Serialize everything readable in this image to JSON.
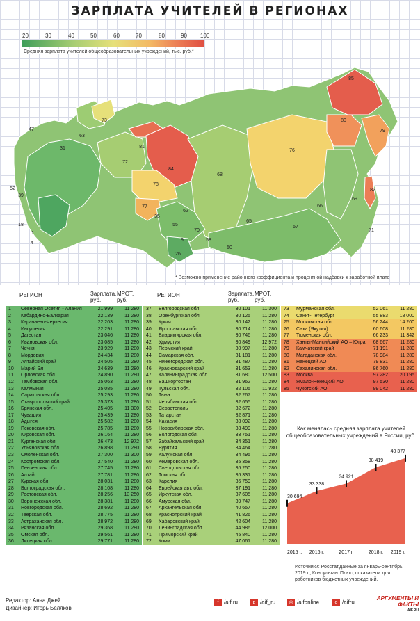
{
  "title": "ЗАРПЛАТА УЧИТЕЛЕЙ В РЕГИОНАХ",
  "scale": {
    "ticks": [
      "20",
      "30",
      "40",
      "50",
      "60",
      "70",
      "80",
      "90",
      "100"
    ],
    "caption": "Средняя зарплата учителей общеобразовательных учреждений, тыс. руб.*",
    "colors": [
      "#3f9e5a",
      "#6db86a",
      "#a6cd72",
      "#d9de72",
      "#f3d36d",
      "#f2a15c",
      "#e76f51",
      "#e04f42"
    ]
  },
  "map": {
    "labels": [
      "47",
      "63",
      "73",
      "81",
      "31",
      "72",
      "84",
      "76",
      "85",
      "80",
      "79",
      "78",
      "68",
      "82",
      "77",
      "62",
      "69",
      "66",
      "65",
      "57",
      "55",
      "70",
      "58",
      "71",
      "35",
      "9",
      "26",
      "50",
      "18",
      "1",
      "4",
      "52",
      "39"
    ]
  },
  "footnote": "* Возможно применение районного коэффициента и процентной надбавки к заработной плате",
  "table_headers": {
    "region": "РЕГИОН",
    "salary": "Зарплата, руб.",
    "mrot": "МРОТ, руб."
  },
  "regions_col1": [
    [
      "1",
      "Северная Осетия - Алания",
      "21 999",
      "11 280"
    ],
    [
      "2",
      "Кабардино-Балкария",
      "22 139",
      "11 280"
    ],
    [
      "3",
      "Карачаево-Черкесия",
      "22 203",
      "11 280"
    ],
    [
      "4",
      "Ингушетия",
      "22 291",
      "11 280"
    ],
    [
      "5",
      "Дагестан",
      "23 046",
      "11 280"
    ],
    [
      "6",
      "Ивановская обл.",
      "23 085",
      "11 280"
    ],
    [
      "7",
      "Чечня",
      "23 929",
      "11 280"
    ],
    [
      "8",
      "Мордовия",
      "24 434",
      "11 280"
    ],
    [
      "9",
      "Алтайский край",
      "24 505",
      "11 280"
    ],
    [
      "10",
      "Марий Эл",
      "24 639",
      "11 280"
    ],
    [
      "11",
      "Орловская обл.",
      "24 890",
      "11 280"
    ],
    [
      "12",
      "Тамбовская обл.",
      "25 063",
      "11 280"
    ],
    [
      "13",
      "Калмыкия",
      "25 085",
      "11 280"
    ],
    [
      "14",
      "Саратовская обл.",
      "25 293",
      "11 280"
    ],
    [
      "15",
      "Ставропольский край",
      "25 373",
      "11 280"
    ],
    [
      "16",
      "Брянская обл.",
      "25 405",
      "11 300"
    ],
    [
      "17",
      "Чувашия",
      "25 439",
      "11 280"
    ],
    [
      "18",
      "Адыгея",
      "25 582",
      "11 280"
    ],
    [
      "19",
      "Псковская обл.",
      "25 785",
      "11 280"
    ],
    [
      "20",
      "Кировская обл.",
      "26 164",
      "11 280"
    ],
    [
      "21",
      "Курганская обл.",
      "26 473",
      "12 972"
    ],
    [
      "22",
      "Ульяновская обл.",
      "26 898",
      "11 280"
    ],
    [
      "23",
      "Смоленская обл.",
      "27 300",
      "11 300"
    ],
    [
      "24",
      "Костромская обл.",
      "27 540",
      "11 280"
    ],
    [
      "25",
      "Пензенская обл.",
      "27 745",
      "11 280"
    ],
    [
      "26",
      "Алтай",
      "27 781",
      "11 280"
    ],
    [
      "27",
      "Курская обл.",
      "28 031",
      "11 280"
    ],
    [
      "28",
      "Волгоградская обл.",
      "28 108",
      "11 280"
    ],
    [
      "29",
      "Ростовская обл.",
      "28 256",
      "13 250"
    ],
    [
      "30",
      "Воронежская обл.",
      "28 381",
      "11 280"
    ],
    [
      "31",
      "Новгородская обл.",
      "28 692",
      "11 280"
    ],
    [
      "32",
      "Тверская обл.",
      "28 775",
      "11 280"
    ],
    [
      "33",
      "Астраханская обл.",
      "28 972",
      "11 280"
    ],
    [
      "34",
      "Рязанская обл.",
      "29 368",
      "11 280"
    ],
    [
      "35",
      "Омская обл.",
      "29 561",
      "11 280"
    ],
    [
      "36",
      "Липецкая обл.",
      "29 771",
      "11 280"
    ]
  ],
  "regions_col2": [
    [
      "37",
      "Белгородская обл.",
      "30 101",
      "11 300"
    ],
    [
      "38",
      "Оренбургская обл.",
      "30 125",
      "11 280"
    ],
    [
      "39",
      "Крым",
      "30 142",
      "11 280"
    ],
    [
      "40",
      "Ярославская обл.",
      "30 714",
      "11 280"
    ],
    [
      "41",
      "Владимирская обл.",
      "30 746",
      "11 280"
    ],
    [
      "42",
      "Удмуртия",
      "30 849",
      "12 972"
    ],
    [
      "43",
      "Пермский край",
      "30 997",
      "11 280"
    ],
    [
      "44",
      "Самарская обл.",
      "31 181",
      "11 280"
    ],
    [
      "45",
      "Нижегородская обл.",
      "31 487",
      "11 280"
    ],
    [
      "46",
      "Краснодарский край",
      "31 653",
      "11 280"
    ],
    [
      "47",
      "Калининградская обл.",
      "31 680",
      "12 500"
    ],
    [
      "48",
      "Башкортостан",
      "31 962",
      "11 280"
    ],
    [
      "49",
      "Тульская обл.",
      "32 105",
      "11 932"
    ],
    [
      "50",
      "Тыва",
      "32 267",
      "11 280"
    ],
    [
      "51",
      "Челябинская обл.",
      "32 655",
      "11 280"
    ],
    [
      "52",
      "Севастополь",
      "32 672",
      "11 280"
    ],
    [
      "53",
      "Татарстан",
      "32 871",
      "11 280"
    ],
    [
      "54",
      "Хакасия",
      "33 092",
      "11 280"
    ],
    [
      "55",
      "Новосибирская обл.",
      "33 499",
      "11 280"
    ],
    [
      "56",
      "Вологодская обл.",
      "33 751",
      "11 280"
    ],
    [
      "57",
      "Забайкальский край",
      "34 351",
      "11 280"
    ],
    [
      "58",
      "Бурятия",
      "34 464",
      "11 280"
    ],
    [
      "59",
      "Калужская обл.",
      "34 495",
      "11 280"
    ],
    [
      "60",
      "Кемеровская обл.",
      "35 358",
      "11 280"
    ],
    [
      "61",
      "Свердловская обл.",
      "36 250",
      "11 280"
    ],
    [
      "62",
      "Томская обл.",
      "36 331",
      "11 280"
    ],
    [
      "63",
      "Карелия",
      "36 759",
      "11 280"
    ],
    [
      "64",
      "Еврейская авт. обл.",
      "37 191",
      "11 280"
    ],
    [
      "65",
      "Иркутская обл.",
      "37 605",
      "11 280"
    ],
    [
      "66",
      "Амурская обл.",
      "39 747",
      "11 280"
    ],
    [
      "67",
      "Архангельская обл.",
      "40 657",
      "11 280"
    ],
    [
      "68",
      "Красноярский край",
      "41 826",
      "11 280"
    ],
    [
      "69",
      "Хабаровский край",
      "42 604",
      "11 280"
    ],
    [
      "70",
      "Ленинградская обл.",
      "44 986",
      "12 000"
    ],
    [
      "71",
      "Приморский край",
      "45 840",
      "11 280"
    ],
    [
      "72",
      "Коми",
      "47 061",
      "11 280"
    ]
  ],
  "regions_col3": [
    [
      "73",
      "Мурманская обл.",
      "52 061",
      "11 280"
    ],
    [
      "74",
      "Санкт-Петербург",
      "55 883",
      "18 000"
    ],
    [
      "75",
      "Московская обл.",
      "56 244",
      "14 200"
    ],
    [
      "76",
      "Саха (Якутия)",
      "60 608",
      "11 280"
    ],
    [
      "77",
      "Тюменская обл.",
      "66 233",
      "11 342"
    ],
    [
      "78",
      "Ханты-Мансийский АО – Югра",
      "68 667",
      "11 280"
    ],
    [
      "79",
      "Камчатский край",
      "71 191",
      "11 280"
    ],
    [
      "80",
      "Магаданская обл.",
      "78 984",
      "11 280"
    ],
    [
      "81",
      "Ненецкий АО",
      "79 831",
      "11 280"
    ],
    [
      "82",
      "Сахалинская обл.",
      "86 760",
      "11 280"
    ],
    [
      "83",
      "Москва",
      "97 282",
      "20 195"
    ],
    [
      "84",
      "Ямало-Ненецкий АО",
      "97 530",
      "11 280"
    ],
    [
      "85",
      "Чукотский АО",
      "99 042",
      "11 280"
    ]
  ],
  "chart_data": {
    "type": "area",
    "title": "Как менялась средняя зарплата учителей общеобразовательных учреждений в России, руб.",
    "categories": [
      "2015 г.",
      "2016 г.",
      "2017 г.",
      "2018 г.",
      "2019 г."
    ],
    "values": [
      30694,
      33338,
      34921,
      38419,
      40377
    ],
    "value_labels": [
      "30 694",
      "33 338",
      "34 921",
      "38 419",
      "40 377"
    ],
    "ylim": [
      0,
      42000
    ]
  },
  "sources": "Источники: Росстат,данные за январь-сентябрь 2019 г., КонсультантПлюс, показатели для работников бюджетных учреждений.",
  "footer": {
    "editor": "Редактор: Анна Джей",
    "designer": "Дизайнер: Игорь Беляков",
    "social": [
      "/aif.ru",
      "/aif_ru",
      "/aifonline",
      "/aifru"
    ],
    "logo": "АРГУМЕНТЫ И ФАКТЫ",
    "logo_sub": "AIF.RU"
  }
}
